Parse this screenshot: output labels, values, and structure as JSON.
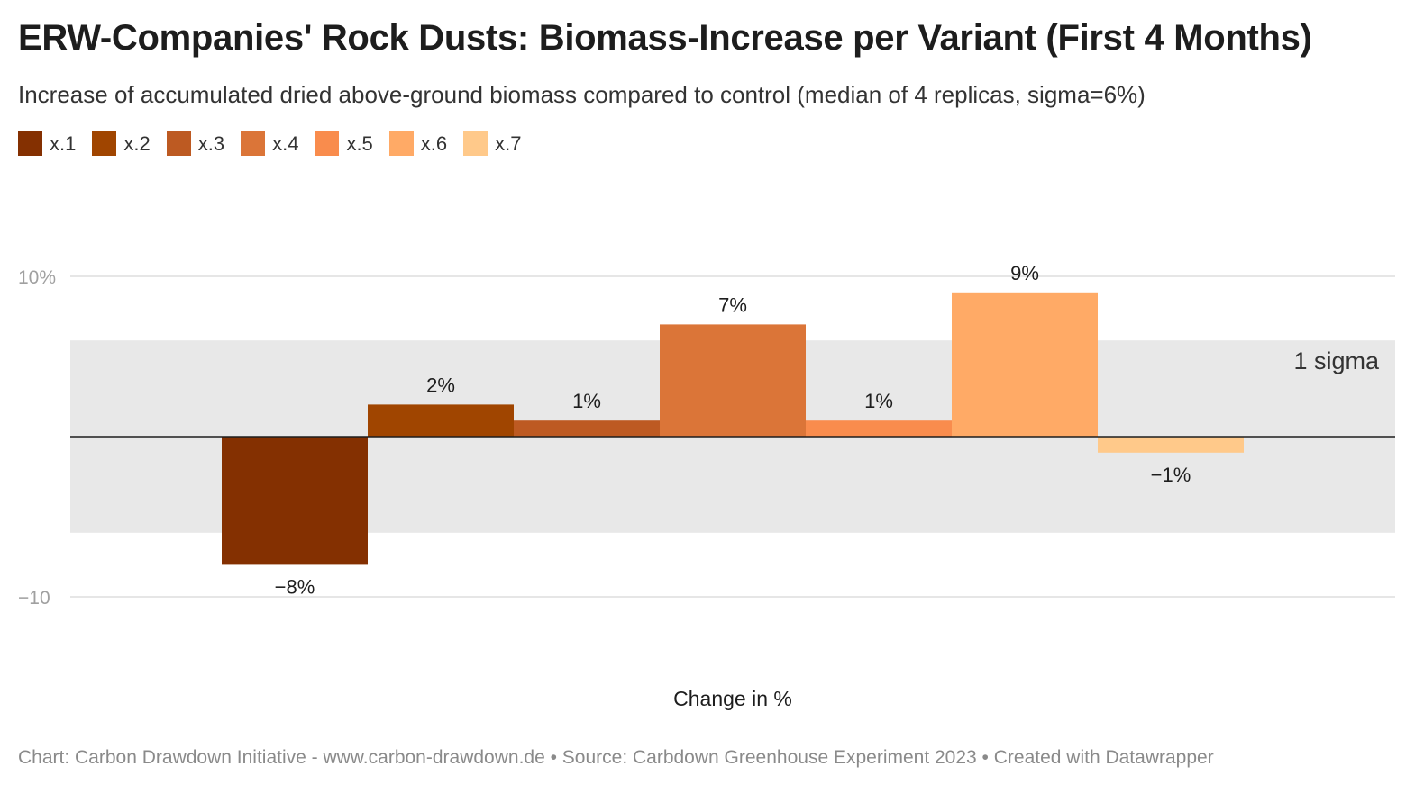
{
  "title": "ERW-Companies' Rock Dusts: Biomass-Increase per Variant (First 4 Months)",
  "subtitle": "Increase of accumulated dried above-ground biomass compared to control (median of 4 replicas, sigma=6%)",
  "footer": "Chart: Carbon Drawdown Initiative - www.carbon-drawdown.de • Source: Carbdown Greenhouse Experiment 2023 • Created with Datawrapper",
  "legend": [
    {
      "label": "x.1",
      "color": "#843001"
    },
    {
      "label": "x.2",
      "color": "#a04500"
    },
    {
      "label": "x.3",
      "color": "#bd5a22"
    },
    {
      "label": "x.4",
      "color": "#db7538"
    },
    {
      "label": "x.5",
      "color": "#f98c4d"
    },
    {
      "label": "x.6",
      "color": "#ffaa66"
    },
    {
      "label": "x.7",
      "color": "#ffc98a"
    }
  ],
  "chart_data": {
    "type": "bar",
    "categories": [
      "x.1",
      "x.2",
      "x.3",
      "x.4",
      "x.5",
      "x.6",
      "x.7"
    ],
    "values": [
      -8,
      2,
      1,
      7,
      1,
      9,
      -1
    ],
    "value_labels": [
      "−8%",
      "2%",
      "1%",
      "7%",
      "1%",
      "9%",
      "−1%"
    ],
    "colors": [
      "#843001",
      "#a04500",
      "#bd5a22",
      "#db7538",
      "#f98c4d",
      "#ffaa66",
      "#ffc98a"
    ],
    "ylim": [
      -10,
      10
    ],
    "yticks": [
      10,
      -10
    ],
    "ytick_labels": [
      "10%",
      "−10"
    ],
    "band": {
      "from": -6,
      "to": 6,
      "label": "1 sigma",
      "color": "#e8e8e8"
    },
    "xlabel": "Change in %",
    "ylabel": "",
    "title": "ERW-Companies' Rock Dusts: Biomass-Increase per Variant (First 4 Months)"
  }
}
